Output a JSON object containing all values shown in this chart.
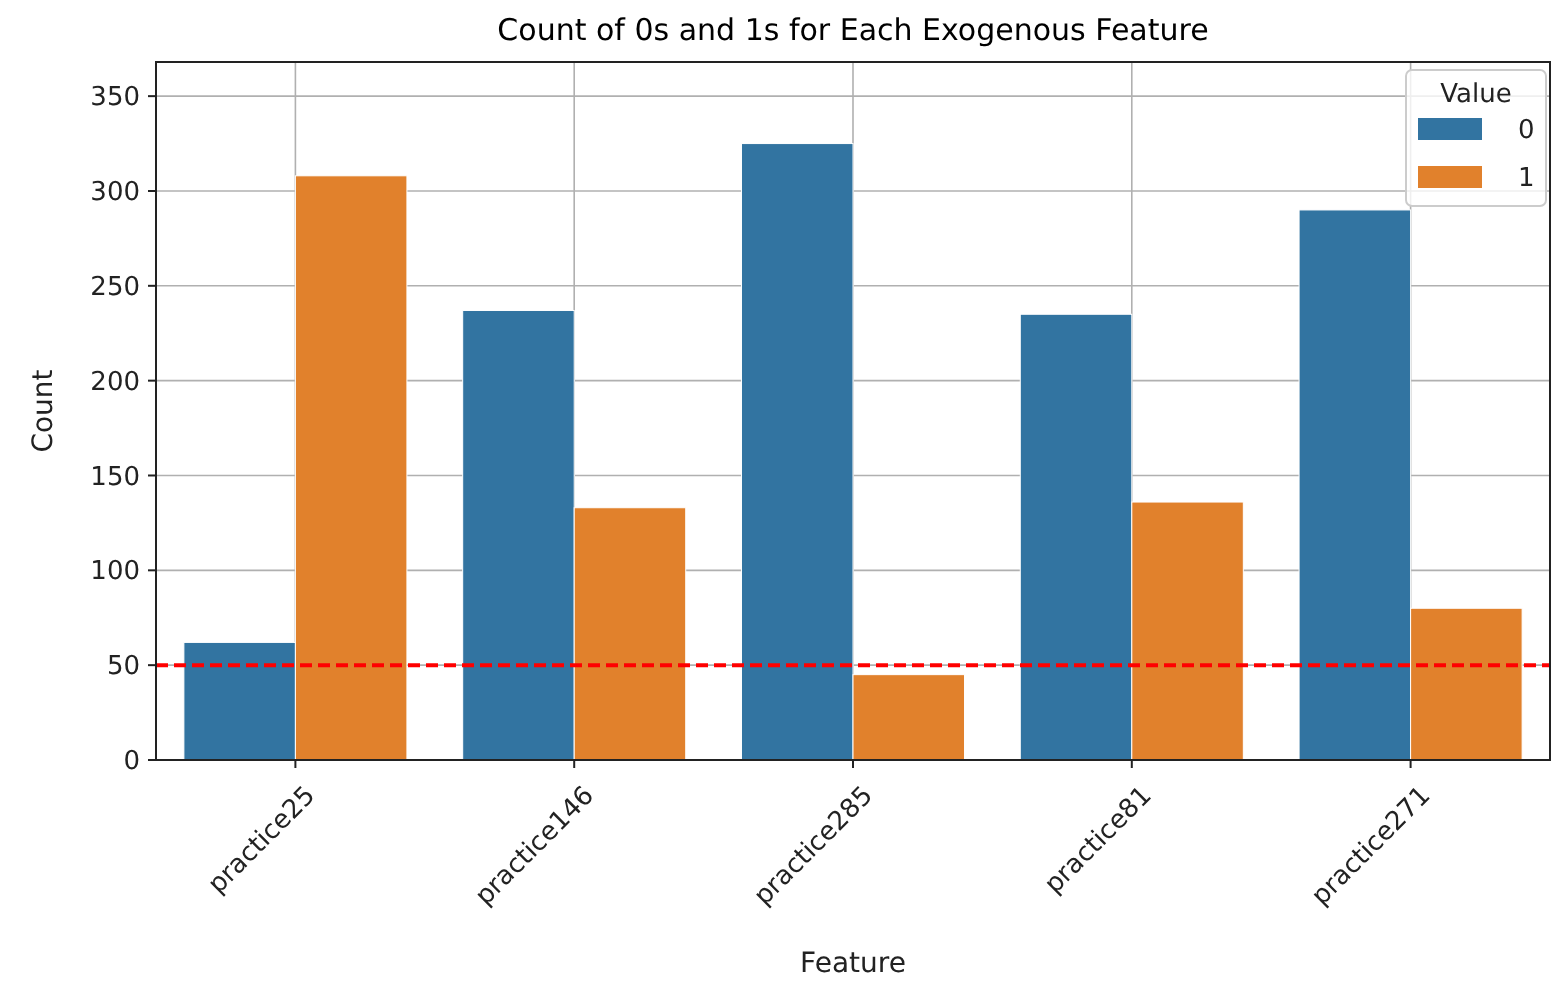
{
  "chart_data": {
    "type": "bar",
    "title": "Count of 0s and 1s for Each Exogenous Feature",
    "xlabel": "Feature",
    "ylabel": "Count",
    "legend_title": "Value",
    "categories": [
      "practice25",
      "practice146",
      "practice285",
      "practice81",
      "practice271"
    ],
    "series": [
      {
        "name": "0",
        "color": "#3274a1",
        "values": [
          62,
          237,
          325,
          235,
          290
        ]
      },
      {
        "name": "1",
        "color": "#e1812c",
        "values": [
          308,
          133,
          45,
          136,
          80
        ]
      }
    ],
    "ylim": [
      0,
      368
    ],
    "yticks": [
      0,
      50,
      100,
      150,
      200,
      250,
      300,
      350
    ],
    "grid": true,
    "legend": "top right",
    "ref_lines": [
      {
        "axis": "y",
        "value": 50,
        "color": "#ff0000",
        "line_style": "dashed"
      }
    ]
  }
}
